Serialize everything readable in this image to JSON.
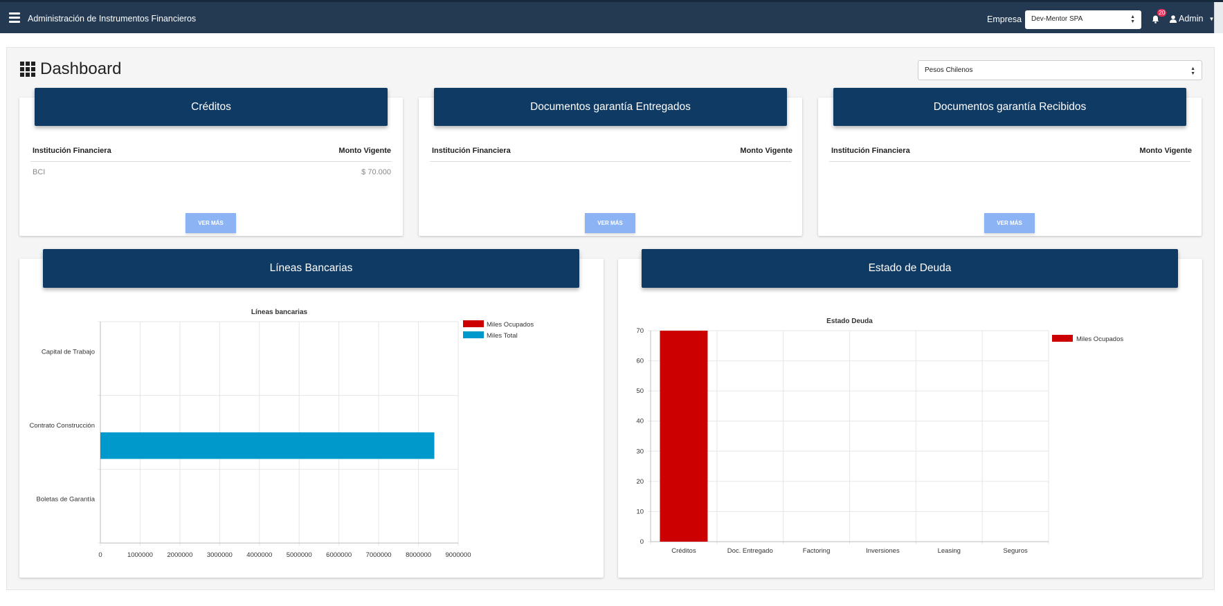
{
  "header": {
    "app_title": "Administración de Instrumentos Financieros",
    "empresa_label": "Empresa",
    "empresa_value": "Dev-Mentor SPA",
    "notifications_count": "20",
    "user_label": "Admin"
  },
  "dashboard": {
    "title": "Dashboard",
    "currency_value": "Pesos Chilenos"
  },
  "cards": {
    "creditos": {
      "title": "Créditos",
      "col_institution": "Institución Financiera",
      "col_amount": "Monto Vigente",
      "rows": [
        {
          "institution": "BCI",
          "amount": "$ 70.000"
        }
      ],
      "button": "VER MÁS"
    },
    "entregados": {
      "title": "Documentos garantía Entregados",
      "col_institution": "Institución Financiera",
      "col_amount": "Monto Vigente",
      "button": "VER MÁS"
    },
    "recibidos": {
      "title": "Documentos garantía Recibidos",
      "col_institution": "Institución Financiera",
      "col_amount": "Monto Vigente",
      "button": "VER MÁS"
    },
    "lineas": {
      "title": "Líneas Bancarias"
    },
    "deuda": {
      "title": "Estado de Deuda"
    }
  },
  "chart_data": [
    {
      "type": "bar",
      "orientation": "horizontal",
      "title": "Líneas bancarias",
      "categories": [
        "Capital de Trabajo",
        "Contrato Construcción",
        "Boletas de Garantía"
      ],
      "series": [
        {
          "name": "Miles Ocupados",
          "color": "#cc0000",
          "values": [
            0,
            0,
            0
          ]
        },
        {
          "name": "Miles Total",
          "color": "#0099cc",
          "values": [
            0,
            8400000,
            0
          ]
        }
      ],
      "xlim": [
        0,
        9000000
      ],
      "xticks": [
        "0",
        "1000000",
        "2000000",
        "3000000",
        "4000000",
        "5000000",
        "6000000",
        "7000000",
        "8000000",
        "9000000"
      ],
      "legend": "top-right",
      "grid": true
    },
    {
      "type": "bar",
      "title": "Estado Deuda",
      "categories": [
        "Créditos",
        "Doc. Entregado",
        "Factoring",
        "Inversiones",
        "Leasing",
        "Seguros"
      ],
      "series": [
        {
          "name": "Miles Ocupados",
          "color": "#cc0000",
          "values": [
            70,
            0,
            0,
            0,
            0,
            0
          ]
        }
      ],
      "ylim": [
        0,
        70
      ],
      "yticks": [
        "0",
        "10",
        "20",
        "30",
        "40",
        "50",
        "60",
        "70"
      ],
      "legend": "top-right",
      "grid": true
    }
  ]
}
